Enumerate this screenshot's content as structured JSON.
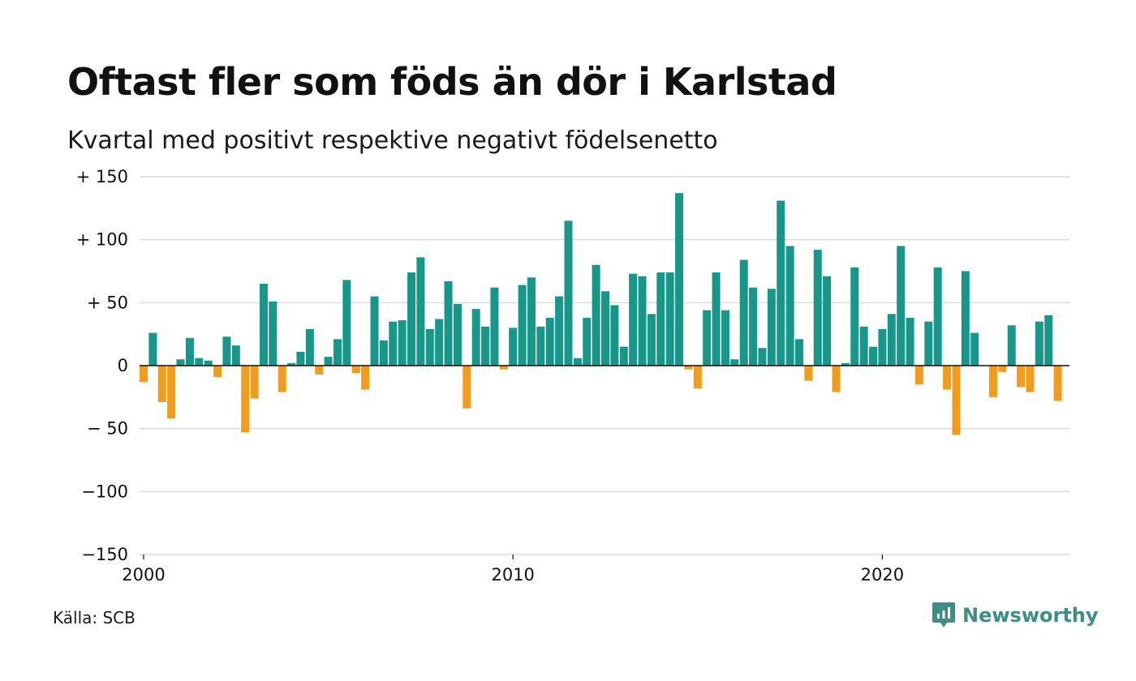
{
  "chart_data": {
    "type": "bar",
    "title": "Oftast fler som föds än dör i Karlstad",
    "subtitle": "Kvartal med positivt respektive negativt födelsenetto",
    "ylim": [
      -150,
      150
    ],
    "yticks": [
      150,
      100,
      50,
      0,
      -50,
      -100,
      -150
    ],
    "ytick_labels": [
      "+ 150",
      "+ 100",
      "+  50",
      "0",
      "− 50",
      "−100",
      "−150"
    ],
    "xticks": [
      2000,
      2010,
      2020
    ],
    "xtick_labels": [
      "2000",
      "2010",
      "2020"
    ],
    "grid": true,
    "colors": {
      "positive": "#17968a",
      "negative": "#f39c1b"
    },
    "x_start": "2000 Q1",
    "values": [
      -13,
      26,
      -29,
      -42,
      5,
      22,
      6,
      4,
      -9,
      23,
      16,
      -53,
      -26,
      65,
      51,
      -21,
      2,
      11,
      29,
      -7,
      7,
      21,
      68,
      -6,
      -19,
      55,
      20,
      35,
      36,
      74,
      86,
      29,
      37,
      67,
      49,
      -34,
      45,
      31,
      62,
      -3,
      30,
      64,
      70,
      31,
      38,
      55,
      115,
      6,
      38,
      80,
      59,
      48,
      15,
      73,
      71,
      41,
      74,
      74,
      137,
      -3,
      -18,
      44,
      74,
      44,
      5,
      84,
      62,
      14,
      61,
      131,
      95,
      21,
      -12,
      92,
      71,
      -21,
      2,
      78,
      31,
      15,
      29,
      41,
      95,
      38,
      -15,
      35,
      78,
      -19,
      -55,
      75,
      26,
      0,
      -25,
      -5,
      32,
      -17,
      -21,
      35,
      40,
      -28
    ]
  },
  "source": "Källa: SCB",
  "brand": {
    "name": "Newsworthy",
    "icon": "newsworthy-logo-icon",
    "color": "#3d8f86"
  }
}
